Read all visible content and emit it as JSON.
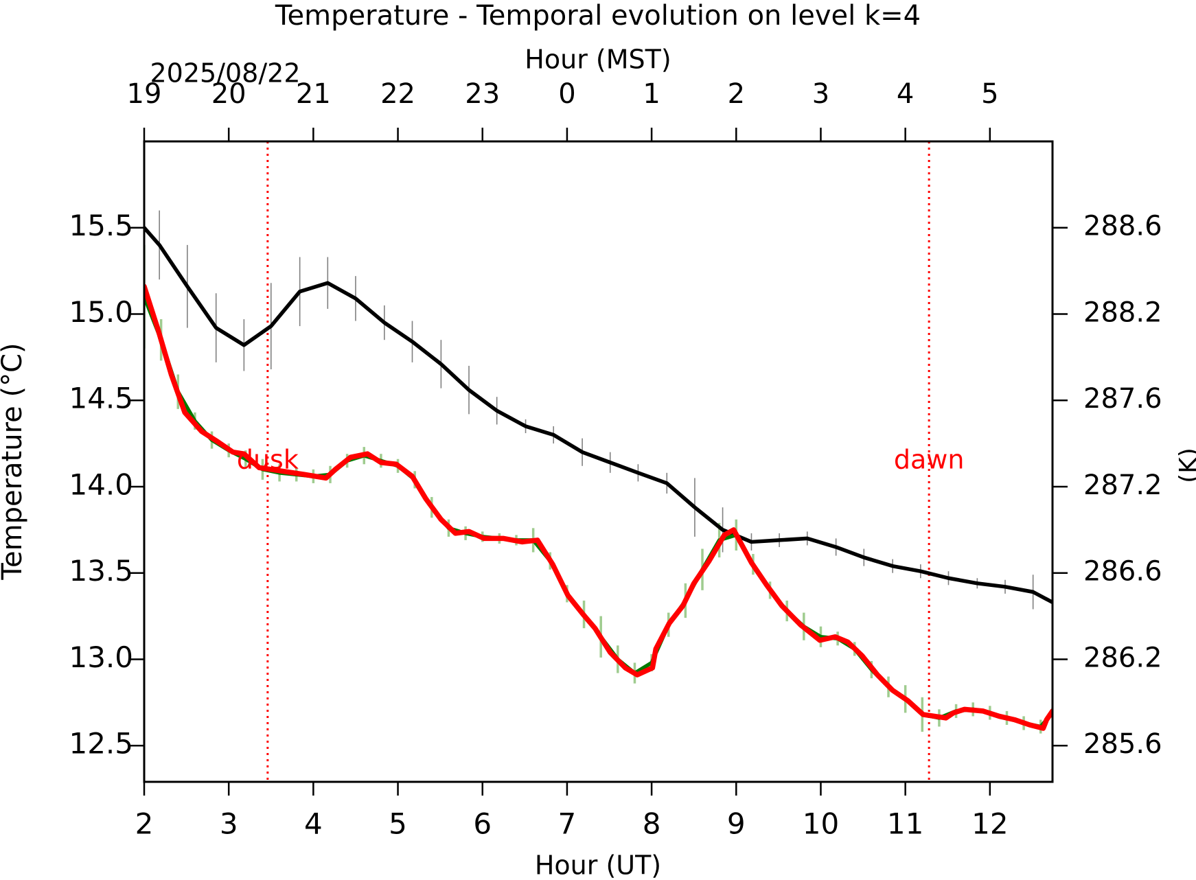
{
  "chart_data": {
    "type": "line",
    "title": "Temperature - Temporal evolution on level k=4",
    "xlabel": "Hour (UT)",
    "x2label": "Hour (MST)",
    "date": "2025/08/22",
    "ylabel": "Temperature (°C)",
    "y2label": "(K)",
    "xlim": [
      2,
      12.74
    ],
    "xticks": [
      2,
      3,
      4,
      5,
      6,
      7,
      8,
      9,
      10,
      11,
      12
    ],
    "x2ticks": [
      {
        "value": 2,
        "label": "19"
      },
      {
        "value": 3,
        "label": "20"
      },
      {
        "value": 4,
        "label": "21"
      },
      {
        "value": 5,
        "label": "22"
      },
      {
        "value": 6,
        "label": "23"
      },
      {
        "value": 7,
        "label": "0"
      },
      {
        "value": 8,
        "label": "1"
      },
      {
        "value": 9,
        "label": "2"
      },
      {
        "value": 10,
        "label": "3"
      },
      {
        "value": 11,
        "label": "4"
      },
      {
        "value": 12,
        "label": "5"
      }
    ],
    "ylim": [
      12.29,
      16.0
    ],
    "yticks": [
      12.5,
      {
        "value": 13,
        "label": "13.0"
      },
      13.5,
      {
        "value": 14,
        "label": "14.0"
      },
      14.5,
      {
        "value": 15,
        "label": "15.0"
      },
      15.5
    ],
    "y2lim": [
      285.44,
      289.15
    ],
    "y2ticks": [
      {
        "value": 285.65,
        "label": "285.6"
      },
      {
        "value": 286.15,
        "label": "286.2"
      },
      {
        "value": 286.65,
        "label": "286.6"
      },
      {
        "value": 287.15,
        "label": "287.2"
      },
      {
        "value": 287.65,
        "label": "287.6"
      },
      {
        "value": 288.15,
        "label": "288.2"
      },
      {
        "value": 288.65,
        "label": "288.6"
      }
    ],
    "vlines": [
      {
        "label": "dusk",
        "x": 3.46,
        "color": "#ff0000"
      },
      {
        "label": "dawn",
        "x": 11.28,
        "color": "#ff0000"
      }
    ],
    "series": [
      {
        "color": "#000000",
        "error_color": "#808080",
        "x": [
          2.0,
          2.18,
          2.51,
          2.85,
          3.18,
          3.5,
          3.84,
          4.17,
          4.5,
          4.84,
          5.17,
          5.51,
          5.84,
          6.17,
          6.51,
          6.84,
          7.18,
          7.51,
          7.84,
          8.18,
          8.51,
          8.84,
          9.18,
          9.51,
          9.84,
          10.18,
          10.51,
          10.85,
          11.18,
          11.51,
          11.85,
          12.18,
          12.51,
          12.74
        ],
        "values": [
          15.5,
          15.4,
          15.16,
          14.92,
          14.82,
          14.93,
          15.13,
          15.18,
          15.09,
          14.95,
          14.84,
          14.71,
          14.56,
          14.44,
          14.35,
          14.3,
          14.2,
          14.14,
          14.08,
          14.02,
          13.88,
          13.75,
          13.68,
          13.69,
          13.7,
          13.65,
          13.59,
          13.54,
          13.51,
          13.47,
          13.44,
          13.42,
          13.39,
          13.33
        ],
        "errors": [
          0,
          0.2,
          0.24,
          0.2,
          0.15,
          0.25,
          0.2,
          0.15,
          0.13,
          0.1,
          0.12,
          0.14,
          0.14,
          0.08,
          0.04,
          0.05,
          0.08,
          0.06,
          0.05,
          0.06,
          0.17,
          0.13,
          0.05,
          0.04,
          0.04,
          0.05,
          0.05,
          0.04,
          0.04,
          0.04,
          0.03,
          0.04,
          0.1,
          0
        ]
      },
      {
        "color": "#007a00",
        "error_color": "#9fcc8f",
        "x": [
          2.0,
          2.2,
          2.4,
          2.6,
          2.8,
          3.0,
          3.2,
          3.4,
          3.6,
          3.8,
          4.0,
          4.2,
          4.4,
          4.6,
          4.8,
          5.0,
          5.2,
          5.4,
          5.6,
          5.8,
          6.0,
          6.2,
          6.4,
          6.6,
          6.8,
          7.0,
          7.2,
          7.4,
          7.6,
          7.8,
          8.0,
          8.2,
          8.4,
          8.6,
          8.8,
          9.0,
          9.2,
          9.4,
          9.6,
          9.8,
          10.0,
          10.2,
          10.4,
          10.6,
          10.8,
          11.0,
          11.2,
          11.4,
          11.6,
          11.8,
          12.0,
          12.2,
          12.4,
          12.6,
          12.74
        ],
        "values": [
          15.1,
          14.85,
          14.55,
          14.38,
          14.27,
          14.21,
          14.16,
          14.1,
          14.08,
          14.07,
          14.06,
          14.07,
          14.15,
          14.18,
          14.15,
          14.12,
          14.04,
          13.88,
          13.76,
          13.73,
          13.71,
          13.7,
          13.69,
          13.69,
          13.57,
          13.38,
          13.26,
          13.13,
          13.0,
          12.92,
          12.98,
          13.2,
          13.34,
          13.52,
          13.69,
          13.72,
          13.55,
          13.4,
          13.28,
          13.19,
          13.13,
          13.12,
          13.06,
          12.94,
          12.84,
          12.77,
          12.68,
          12.66,
          12.7,
          12.71,
          12.69,
          12.66,
          12.63,
          12.61,
          12.69
        ],
        "errors": [
          0.3,
          0.12,
          0.1,
          0.05,
          0.05,
          0.04,
          0.05,
          0.06,
          0.05,
          0.04,
          0.04,
          0.05,
          0.04,
          0.05,
          0.04,
          0.04,
          0.05,
          0.06,
          0.05,
          0.04,
          0.03,
          0.03,
          0.03,
          0.07,
          0.05,
          0.05,
          0.08,
          0.12,
          0.08,
          0.06,
          0.05,
          0.07,
          0.1,
          0.12,
          0.1,
          0.09,
          0.06,
          0.05,
          0.06,
          0.08,
          0.06,
          0.04,
          0.04,
          0.05,
          0.06,
          0.08,
          0.1,
          0.05,
          0.04,
          0.04,
          0.04,
          0.04,
          0.04,
          0.04,
          0.03
        ]
      },
      {
        "color": "#ff0000",
        "x": [
          2.0,
          2.17,
          2.32,
          2.48,
          2.68,
          2.87,
          3.05,
          3.18,
          3.36,
          3.63,
          3.9,
          4.15,
          4.26,
          4.44,
          4.64,
          4.8,
          4.98,
          5.17,
          5.33,
          5.51,
          5.68,
          5.84,
          6.02,
          6.25,
          6.47,
          6.65,
          6.83,
          7.01,
          7.19,
          7.33,
          7.51,
          7.69,
          7.83,
          8.01,
          8.05,
          8.21,
          8.37,
          8.5,
          8.68,
          8.86,
          8.97,
          9.18,
          9.36,
          9.54,
          9.76,
          9.99,
          10.17,
          10.32,
          10.49,
          10.67,
          10.85,
          11.03,
          11.21,
          11.48,
          11.57,
          11.7,
          11.92,
          12.11,
          12.29,
          12.47,
          12.63,
          12.67,
          12.74
        ],
        "values": [
          15.16,
          14.9,
          14.65,
          14.43,
          14.32,
          14.26,
          14.2,
          14.19,
          14.11,
          14.09,
          14.07,
          14.05,
          14.1,
          14.17,
          14.19,
          14.14,
          14.13,
          14.06,
          13.93,
          13.81,
          13.73,
          13.74,
          13.7,
          13.7,
          13.68,
          13.69,
          13.55,
          13.37,
          13.26,
          13.18,
          13.04,
          12.95,
          12.91,
          12.95,
          13.06,
          13.21,
          13.31,
          13.44,
          13.57,
          13.72,
          13.75,
          13.56,
          13.43,
          13.31,
          13.2,
          13.11,
          13.13,
          13.1,
          13.02,
          12.91,
          12.82,
          12.76,
          12.68,
          12.66,
          12.69,
          12.71,
          12.7,
          12.67,
          12.65,
          12.62,
          12.6,
          12.65,
          12.7
        ]
      }
    ]
  }
}
